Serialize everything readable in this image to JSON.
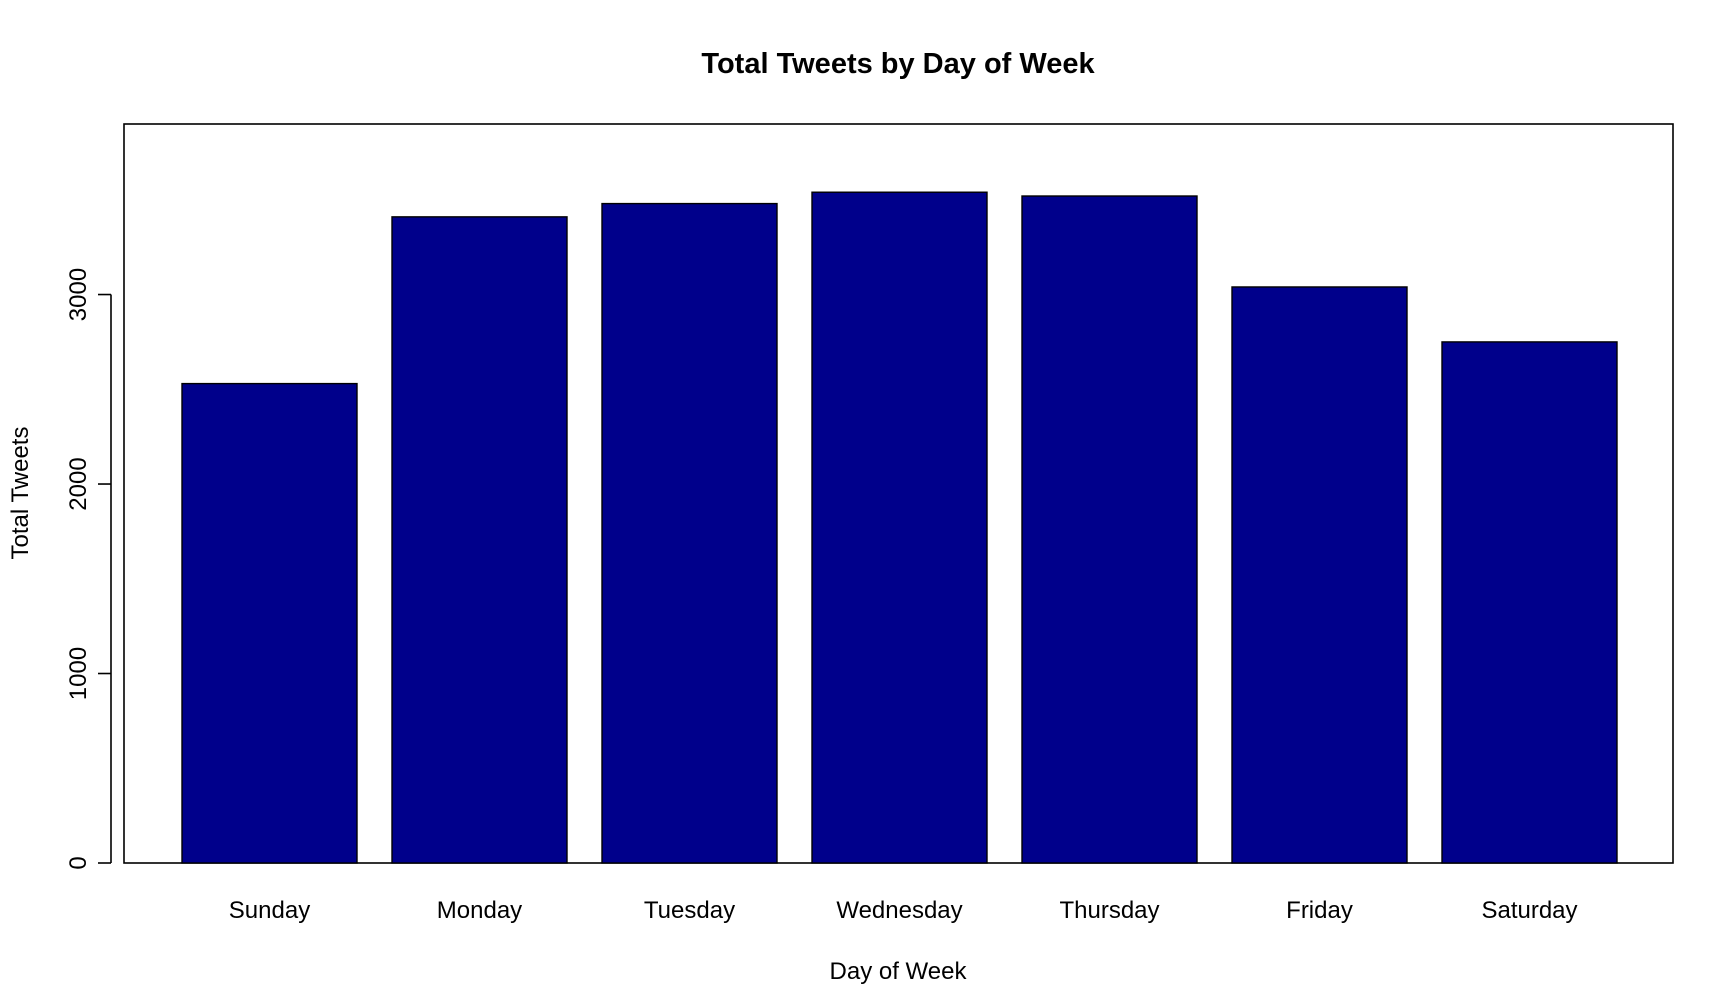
{
  "chart_data": {
    "type": "bar",
    "title": "Total Tweets by Day of Week",
    "xlabel": "Day of Week",
    "ylabel": "Total Tweets",
    "categories": [
      "Sunday",
      "Monday",
      "Tuesday",
      "Wednesday",
      "Thursday",
      "Friday",
      "Saturday"
    ],
    "values": [
      2530,
      3410,
      3480,
      3540,
      3520,
      3040,
      2750
    ],
    "ylim": [
      0,
      3900
    ],
    "yticks": [
      0,
      1000,
      2000,
      3000
    ],
    "grid": false,
    "legend": "none",
    "bar_color": "#00008B"
  }
}
